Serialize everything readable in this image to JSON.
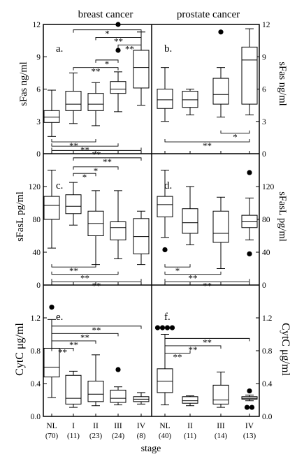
{
  "chart_data": [
    {
      "type": "box",
      "panel": "a.",
      "title": "breast cancer",
      "ylabel": "sFas ng/ml",
      "ylim": [
        0,
        12
      ],
      "yticks": [
        "0",
        "3",
        "6",
        "9",
        "12"
      ],
      "categories": [
        "NL",
        "I",
        "II",
        "III",
        "IV"
      ],
      "counts": [
        "(70)",
        "(11)",
        "(23)",
        "(24)",
        "(8)"
      ],
      "boxes": [
        {
          "min": 1.6,
          "q1": 2.9,
          "median": 3.4,
          "q3": 4.0,
          "max": 5.9,
          "outliers": []
        },
        {
          "min": 2.8,
          "q1": 4.0,
          "median": 4.6,
          "q3": 5.8,
          "max": 7.5,
          "outliers": []
        },
        {
          "min": 2.6,
          "q1": 4.0,
          "median": 4.6,
          "q3": 5.6,
          "max": 6.6,
          "outliers": []
        },
        {
          "min": 3.9,
          "q1": 5.6,
          "median": 6.0,
          "q3": 6.7,
          "max": 7.6,
          "outliers": [
            9.6,
            12.0
          ]
        },
        {
          "min": 4.5,
          "q1": 6.1,
          "median": 8.0,
          "q3": 9.6,
          "max": 11.3,
          "outliers": []
        }
      ],
      "significance": [
        {
          "from": 1,
          "to": 4,
          "label": "*",
          "y": 11.5
        },
        {
          "from": 2,
          "to": 4,
          "label": "**",
          "y": 10.8
        },
        {
          "from": 3,
          "to": 4,
          "label": "**",
          "y": 10.1
        },
        {
          "from": 2,
          "to": 3,
          "label": "*",
          "y": 8.7
        },
        {
          "from": 1,
          "to": 3,
          "label": "**",
          "y": 8.0
        },
        {
          "from": 0,
          "to": 2,
          "label": "**",
          "y": 1.1
        },
        {
          "from": 0,
          "to": 3,
          "label": "**",
          "y": 0.7
        },
        {
          "from": 0,
          "to": 4,
          "label": "**",
          "y": 0.3
        }
      ]
    },
    {
      "type": "box",
      "panel": "b.",
      "title": "prostate cancer",
      "ylabel": "sFas ng/ml",
      "ylim": [
        0,
        12
      ],
      "yticks": [
        "0",
        "3",
        "6",
        "9",
        "12"
      ],
      "categories": [
        "NL",
        "II",
        "III",
        "IV"
      ],
      "counts": [
        "(40)",
        "(11)",
        "(14)",
        "(13)"
      ],
      "boxes": [
        {
          "min": 3.0,
          "q1": 4.2,
          "median": 5.0,
          "q3": 6.0,
          "max": 8.0,
          "outliers": []
        },
        {
          "min": 3.6,
          "q1": 4.3,
          "median": 5.0,
          "q3": 5.8,
          "max": 6.0,
          "outliers": []
        },
        {
          "min": 3.4,
          "q1": 4.6,
          "median": 5.5,
          "q3": 7.0,
          "max": 8.0,
          "outliers": [
            11.3
          ]
        },
        {
          "min": 3.6,
          "q1": 4.6,
          "median": 8.7,
          "q3": 9.9,
          "max": 11.6,
          "outliers": []
        }
      ],
      "significance": [
        {
          "from": 2,
          "to": 3,
          "label": "*",
          "y": 1.9
        },
        {
          "from": 0,
          "to": 3,
          "label": "**",
          "y": 1.1
        }
      ]
    },
    {
      "type": "box",
      "panel": "c.",
      "ylabel": "sFasL pg/ml",
      "ylim": [
        0,
        160
      ],
      "yticks": [
        "0",
        "40",
        "80",
        "120"
      ],
      "categories": [
        "NL",
        "I",
        "II",
        "III",
        "IV"
      ],
      "counts": [
        "(70)",
        "(11)",
        "(23)",
        "(24)",
        "(8)"
      ],
      "boxes": [
        {
          "min": 45,
          "q1": 80,
          "median": 97,
          "q3": 108,
          "max": 140,
          "outliers": []
        },
        {
          "min": 73,
          "q1": 87,
          "median": 96,
          "q3": 110,
          "max": 125,
          "outliers": []
        },
        {
          "min": 25,
          "q1": 60,
          "median": 75,
          "q3": 90,
          "max": 115,
          "outliers": []
        },
        {
          "min": 32,
          "q1": 55,
          "median": 70,
          "q3": 77,
          "max": 115,
          "outliers": []
        },
        {
          "min": 25,
          "q1": 38,
          "median": 59,
          "q3": 81,
          "max": 90,
          "outliers": []
        }
      ],
      "significance": [
        {
          "from": 1,
          "to": 4,
          "label": "**",
          "y": 155
        },
        {
          "from": 1,
          "to": 3,
          "label": "*",
          "y": 144
        },
        {
          "from": 1,
          "to": 2,
          "label": "*",
          "y": 136
        },
        {
          "from": 0,
          "to": 2,
          "label": "**",
          "y": 22
        },
        {
          "from": 0,
          "to": 3,
          "label": "**",
          "y": 13
        },
        {
          "from": 0,
          "to": 4,
          "label": "**",
          "y": 4
        }
      ]
    },
    {
      "type": "box",
      "panel": "d.",
      "ylabel": "sFasL pg/ml",
      "ylim": [
        0,
        160
      ],
      "yticks": [
        "0",
        "40",
        "80",
        "120"
      ],
      "categories": [
        "NL",
        "II",
        "III",
        "IV"
      ],
      "counts": [
        "(40)",
        "(11)",
        "(14)",
        "(13)"
      ],
      "boxes": [
        {
          "min": 58,
          "q1": 83,
          "median": 98,
          "q3": 108,
          "max": 140,
          "outliers": [
            43
          ]
        },
        {
          "min": 49,
          "q1": 63,
          "median": 76,
          "q3": 93,
          "max": 120,
          "outliers": []
        },
        {
          "min": 20,
          "q1": 52,
          "median": 63,
          "q3": 90,
          "max": 107,
          "outliers": []
        },
        {
          "min": 55,
          "q1": 70,
          "median": 77,
          "q3": 85,
          "max": 106,
          "outliers": [
            137,
            38
          ]
        }
      ],
      "significance": [
        {
          "from": 0,
          "to": 1,
          "label": "*",
          "y": 22
        },
        {
          "from": 0,
          "to": 2,
          "label": "**",
          "y": 13
        },
        {
          "from": 0,
          "to": 3,
          "label": "**",
          "y": 4
        }
      ]
    },
    {
      "type": "box",
      "panel": "e.",
      "ylabel": "CytC μg/ml",
      "ylim": [
        0,
        1.6
      ],
      "yticks": [
        "0.0",
        "0.4",
        "0.8",
        "1.2"
      ],
      "categories": [
        "NL",
        "I",
        "II",
        "III",
        "IV"
      ],
      "counts": [
        "(70)",
        "(11)",
        "(23)",
        "(24)",
        "(8)"
      ],
      "xlabel": "stage",
      "boxes": [
        {
          "min": 0.23,
          "q1": 0.48,
          "median": 0.6,
          "q3": 0.83,
          "max": 1.18,
          "outliers": [
            1.33
          ]
        },
        {
          "min": 0.11,
          "q1": 0.15,
          "median": 0.22,
          "q3": 0.5,
          "max": 0.55,
          "outliers": []
        },
        {
          "min": 0.13,
          "q1": 0.18,
          "median": 0.27,
          "q3": 0.43,
          "max": 0.75,
          "outliers": []
        },
        {
          "min": 0.14,
          "q1": 0.17,
          "median": 0.22,
          "q3": 0.32,
          "max": 0.36,
          "outliers": [
            0.57
          ]
        },
        {
          "min": 0.15,
          "q1": 0.18,
          "median": 0.21,
          "q3": 0.24,
          "max": 0.29,
          "outliers": []
        }
      ],
      "significance": [
        {
          "from": 0,
          "to": 4,
          "label": "**",
          "y": 1.1
        },
        {
          "from": 0,
          "to": 3,
          "label": "**",
          "y": 1.01
        },
        {
          "from": 0,
          "to": 2,
          "label": "**",
          "y": 0.92
        },
        {
          "from": 0,
          "to": 1,
          "label": "**",
          "y": 0.83
        }
      ]
    },
    {
      "type": "box",
      "panel": "f.",
      "ylabel": "CytC μg/ml",
      "ylim": [
        0,
        1.6
      ],
      "yticks": [
        "0.0",
        "0.4",
        "0.8",
        "1.2"
      ],
      "categories": [
        "NL",
        "II",
        "III",
        "IV"
      ],
      "counts": [
        "(40)",
        "(11)",
        "(14)",
        "(13)"
      ],
      "boxes": [
        {
          "min": 0.14,
          "q1": 0.29,
          "median": 0.43,
          "q3": 0.58,
          "max": 1.0,
          "outliers": [
            1.08,
            1.08,
            1.08,
            1.08
          ]
        },
        {
          "min": 0.13,
          "q1": 0.16,
          "median": 0.19,
          "q3": 0.24,
          "max": 0.25,
          "outliers": []
        },
        {
          "min": 0.11,
          "q1": 0.15,
          "median": 0.2,
          "q3": 0.38,
          "max": 0.54,
          "outliers": []
        },
        {
          "min": 0.19,
          "q1": 0.21,
          "median": 0.22,
          "q3": 0.24,
          "max": 0.26,
          "outliers": [
            0.31,
            0.11,
            0.11
          ]
        }
      ],
      "significance": [
        {
          "from": 0,
          "to": 3,
          "label": "**",
          "y": 0.95
        },
        {
          "from": 0,
          "to": 2,
          "label": "**",
          "y": 0.86
        },
        {
          "from": 0,
          "to": 1,
          "label": "**",
          "y": 0.77
        }
      ]
    }
  ]
}
